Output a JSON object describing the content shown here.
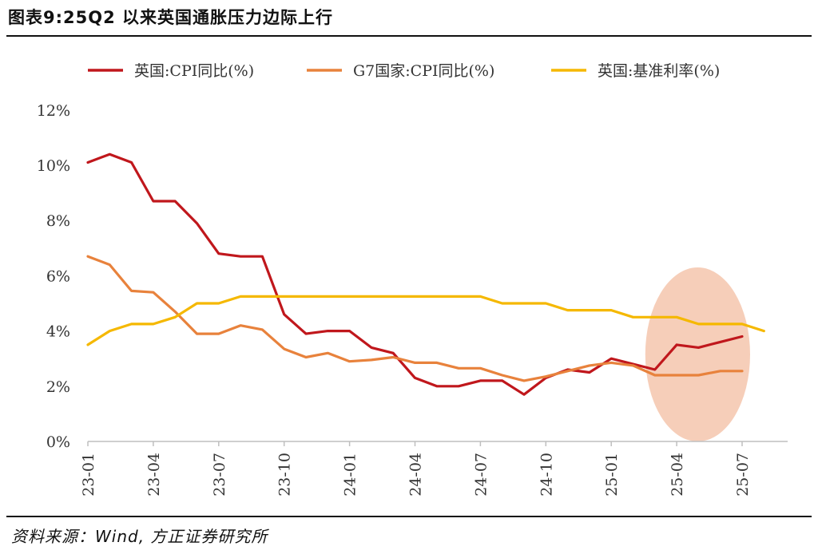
{
  "title": "图表9:25Q2 以来英国通胀压力边际上行",
  "source": "资料来源：Wind, 方正证券研究所",
  "chart_data": {
    "type": "line",
    "x": [
      "23-01",
      "23-02",
      "23-03",
      "23-04",
      "23-05",
      "23-06",
      "23-07",
      "23-08",
      "23-09",
      "23-10",
      "23-11",
      "23-12",
      "24-01",
      "24-02",
      "24-03",
      "24-04",
      "24-05",
      "24-06",
      "24-07",
      "24-08",
      "24-09",
      "24-10",
      "24-11",
      "24-12",
      "25-01",
      "25-02",
      "25-03",
      "25-04",
      "25-05",
      "25-06",
      "25-07",
      "25-08"
    ],
    "xtick_labels": [
      "23-01",
      "23-04",
      "23-07",
      "23-10",
      "24-01",
      "24-04",
      "24-07",
      "24-10",
      "25-01",
      "25-04",
      "25-07"
    ],
    "ylim": [
      0,
      12
    ],
    "yticks": [
      0,
      2,
      4,
      6,
      8,
      10,
      12
    ],
    "ytick_labels": [
      "0%",
      "2%",
      "4%",
      "6%",
      "8%",
      "10%",
      "12%"
    ],
    "legend_position": "top",
    "series": [
      {
        "name": "英国:CPI同比(%)",
        "color": "#c0171c",
        "values": [
          10.1,
          10.4,
          10.1,
          8.7,
          8.7,
          7.9,
          6.8,
          6.7,
          6.7,
          4.6,
          3.9,
          4.0,
          4.0,
          3.4,
          3.2,
          2.3,
          2.0,
          2.0,
          2.2,
          2.2,
          1.7,
          2.3,
          2.6,
          2.5,
          3.0,
          2.8,
          2.6,
          3.5,
          3.4,
          3.6,
          3.8,
          null
        ]
      },
      {
        "name": "G7国家:CPI同比(%)",
        "color": "#e8823c",
        "values": [
          6.7,
          6.4,
          5.45,
          5.4,
          4.7,
          3.9,
          3.9,
          4.2,
          4.05,
          3.35,
          3.05,
          3.2,
          2.9,
          2.95,
          3.05,
          2.85,
          2.85,
          2.65,
          2.65,
          2.4,
          2.2,
          2.35,
          2.55,
          2.75,
          2.85,
          2.75,
          2.4,
          2.4,
          2.4,
          2.55,
          2.55,
          null
        ]
      },
      {
        "name": "英国:基准利率(%)",
        "color": "#f5b800",
        "values": [
          3.5,
          4.0,
          4.25,
          4.25,
          4.5,
          5.0,
          5.0,
          5.25,
          5.25,
          5.25,
          5.25,
          5.25,
          5.25,
          5.25,
          5.25,
          5.25,
          5.25,
          5.25,
          5.25,
          5.0,
          5.0,
          5.0,
          4.75,
          4.75,
          4.75,
          4.5,
          4.5,
          4.5,
          4.25,
          4.25,
          4.25,
          4.0
        ]
      }
    ],
    "highlight": {
      "shape": "ellipse",
      "color": "#f4c6ad",
      "x_range": [
        "25-03",
        "25-07"
      ],
      "y_range": [
        0,
        6.3
      ]
    }
  }
}
